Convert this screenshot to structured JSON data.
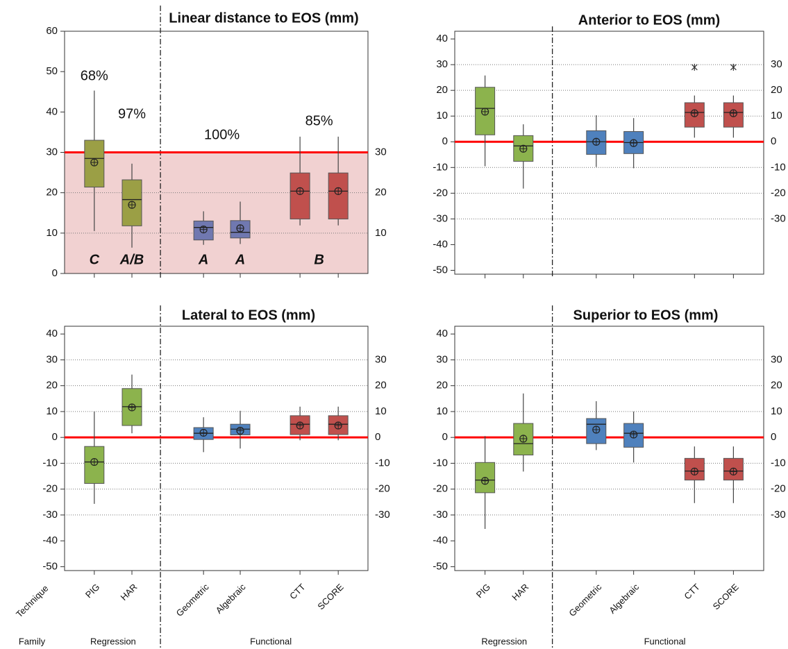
{
  "chart_data": [
    {
      "type": "box",
      "title": "Linear distance to EOS (mm)",
      "categories": [
        null,
        null,
        null,
        null,
        null,
        null
      ],
      "colors": [
        "#9b9f45",
        "#9b9f45",
        "#7078b0",
        "#7078b0",
        "#c0504d",
        "#c0504d"
      ],
      "whisker_low": [
        10.5,
        6.4,
        7.1,
        7.3,
        11.9,
        11.9
      ],
      "q1": [
        21.4,
        11.8,
        8.3,
        8.8,
        13.5,
        13.5
      ],
      "median": [
        28.5,
        18.3,
        11.4,
        10.2,
        20.4,
        20.4
      ],
      "q3": [
        33,
        23.2,
        13,
        13.1,
        24.9,
        24.9
      ],
      "whisker_high": [
        45.3,
        27.2,
        15.4,
        17.8,
        33.9,
        33.9
      ],
      "mean": [
        27.5,
        17,
        10.9,
        11.2,
        20.4,
        20.4
      ],
      "outliers": [
        [],
        [],
        [],
        [],
        [],
        []
      ],
      "ylim": [
        0,
        60
      ],
      "yticks": [
        0,
        10,
        20,
        30,
        40,
        50,
        60
      ],
      "y2ticks": [
        10,
        20,
        30
      ],
      "reference_line": 30,
      "reference_color": "#ff0000",
      "shaded_range": [
        0,
        30
      ],
      "shade_color": "#e9b8b8",
      "annotations": [
        "68%",
        "97%",
        "100%",
        "85%"
      ],
      "letters": [
        "C",
        "A/B",
        "A",
        "A",
        "B"
      ]
    },
    {
      "type": "box",
      "title": "Anterior to EOS (mm)",
      "categories": [
        null,
        null,
        null,
        null,
        null,
        null
      ],
      "colors": [
        "#8cb34d",
        "#8cb34d",
        "#4f81bd",
        "#4f81bd",
        "#c0504d",
        "#c0504d"
      ],
      "whisker_low": [
        -9.5,
        -18.2,
        -9.8,
        -10.3,
        1.6,
        1.6
      ],
      "q1": [
        2.7,
        -7.6,
        -4.9,
        -4.6,
        5.7,
        5.7
      ],
      "median": [
        13,
        -1.6,
        0,
        -0.3,
        11.4,
        11.4
      ],
      "q3": [
        21.2,
        2.4,
        4.3,
        4,
        15.2,
        15.2
      ],
      "whisker_high": [
        25.8,
        6.8,
        10.3,
        9.2,
        18,
        18
      ],
      "mean": [
        11.7,
        -2.7,
        0,
        -0.5,
        11.1,
        11.1
      ],
      "outliers": [
        [],
        [],
        [],
        [],
        [
          29
        ],
        [
          29
        ]
      ],
      "ylim": [
        -51.5,
        43
      ],
      "yticks": [
        -50,
        -40,
        -30,
        -20,
        -10,
        0,
        10,
        20,
        30,
        40
      ],
      "y2ticks": [
        -30,
        -20,
        -10,
        0,
        10,
        20,
        30
      ],
      "reference_line": 0,
      "reference_color": "#ff0000"
    },
    {
      "type": "box",
      "title": "Lateral  to EOS (mm)",
      "categories": [
        "PIG",
        "HAR",
        "Geometric",
        "Algebraic",
        "CTT",
        "SCORE"
      ],
      "colors": [
        "#8cb34d",
        "#8cb34d",
        "#4f81bd",
        "#4f81bd",
        "#c0504d",
        "#c0504d"
      ],
      "whisker_low": [
        -25.7,
        1.6,
        -5.7,
        -4.3,
        -1.1,
        -1.1
      ],
      "q1": [
        -17.8,
        4.6,
        -0.8,
        1,
        1.1,
        1.1
      ],
      "median": [
        -9.5,
        11.9,
        1.6,
        3.2,
        5.1,
        5.1
      ],
      "q3": [
        -3.5,
        18.9,
        3.8,
        5.1,
        8.4,
        8.4
      ],
      "whisker_high": [
        10,
        24.3,
        7.8,
        10.3,
        11.9,
        11.9
      ],
      "mean": [
        -9.5,
        11.6,
        1.8,
        2.6,
        4.6,
        4.6
      ],
      "outliers": [
        [],
        [],
        [],
        [],
        [],
        []
      ],
      "ylim": [
        -51.5,
        43
      ],
      "yticks": [
        -50,
        -40,
        -30,
        -20,
        -10,
        0,
        10,
        20,
        30,
        40
      ],
      "y2ticks": [
        -30,
        -20,
        -10,
        0,
        10,
        20,
        30
      ],
      "reference_line": 0,
      "reference_color": "#ff0000",
      "technique_title": "Technique",
      "family_title": "Family",
      "families": [
        "Regression",
        "Functional"
      ]
    },
    {
      "type": "box",
      "title": "Superior to EOS (mm)",
      "categories": [
        "PIG",
        "HAR",
        "Geometric",
        "Algebraic",
        "CTT",
        "SCORE"
      ],
      "colors": [
        "#8cb34d",
        "#8cb34d",
        "#4f81bd",
        "#4f81bd",
        "#c0504d",
        "#c0504d"
      ],
      "whisker_low": [
        -35.4,
        -13.2,
        -4.9,
        -9.7,
        -25.4,
        -25.4
      ],
      "q1": [
        -21.4,
        -6.8,
        -2.4,
        -3.8,
        -16.5,
        -16.5
      ],
      "median": [
        -16.5,
        -2.4,
        5.1,
        1.6,
        -13,
        -13
      ],
      "q3": [
        -9.7,
        5.4,
        7.3,
        5.4,
        -8.1,
        -8.1
      ],
      "whisker_high": [
        0.5,
        17,
        14,
        10,
        -3.5,
        -3.5
      ],
      "mean": [
        -16.8,
        -0.5,
        3,
        1.1,
        -13.2,
        -13.2
      ],
      "outliers": [
        [],
        [],
        [],
        [],
        [],
        []
      ],
      "ylim": [
        -51.5,
        43
      ],
      "yticks": [
        -50,
        -40,
        -30,
        -20,
        -10,
        0,
        10,
        20,
        30,
        40
      ],
      "y2ticks": [
        -30,
        -20,
        -10,
        0,
        10,
        20,
        30
      ],
      "reference_line": 0,
      "reference_color": "#ff0000",
      "families": [
        "Regression",
        "Functional"
      ]
    }
  ]
}
